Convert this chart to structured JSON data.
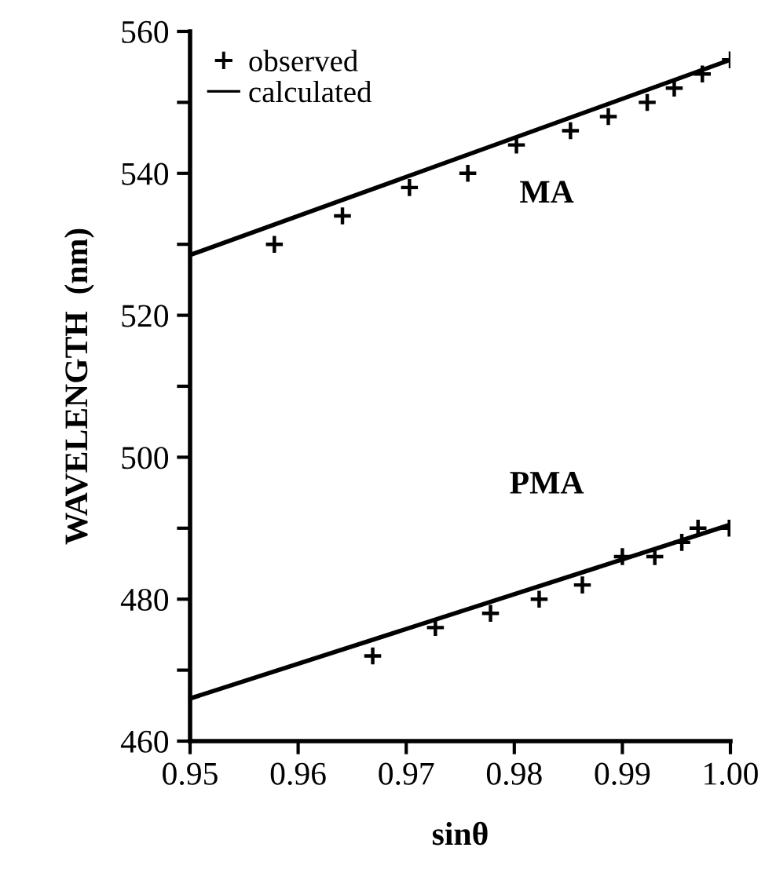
{
  "chart_data": {
    "type": "scatter",
    "xlabel": "sinθ",
    "ylabel": "WAVELENGTH  (nm)",
    "xlim": [
      0.95,
      1.0
    ],
    "xticks": [
      {
        "value": 0.95,
        "label": "0.95"
      },
      {
        "value": 0.96,
        "label": "0.96"
      },
      {
        "value": 0.97,
        "label": "0.97"
      },
      {
        "value": 0.98,
        "label": "0.98"
      },
      {
        "value": 0.99,
        "label": "0.99"
      },
      {
        "value": 1.0,
        "label": "1.00"
      }
    ],
    "ylim": [
      460,
      560
    ],
    "yticks": [
      460,
      {
        "value": 470,
        "label": null
      },
      480,
      {
        "value": 490,
        "label": null
      },
      500,
      {
        "value": 510,
        "label": null
      },
      520,
      {
        "value": 530,
        "label": null
      },
      540,
      {
        "value": 550,
        "label": null
      },
      560
    ],
    "legend": "top left",
    "grid": false,
    "series": [
      {
        "name": "observed",
        "marker": "cross",
        "color": "#000000",
        "x": [
          0.9578,
          0.9641,
          0.9703,
          0.9757,
          0.9802,
          0.9852,
          0.9887,
          0.9923,
          0.9948,
          0.9974,
          1.0
        ],
        "values": [
          530,
          534,
          538,
          540,
          544,
          546,
          548,
          550,
          552,
          554,
          556
        ]
      },
      {
        "marker": "cross",
        "color": "#000000",
        "x": [
          0.9669,
          0.9727,
          0.9778,
          0.9823,
          0.9863,
          0.99,
          0.993,
          0.9955,
          0.997,
          0.9999
        ],
        "values": [
          472,
          476,
          478,
          480,
          482,
          486,
          486,
          488,
          490,
          490
        ]
      },
      {
        "name": "calculated",
        "type": "line",
        "color": "#000000",
        "line_style": "solid",
        "x": [
          0.95,
          1.0
        ],
        "values": [
          528.5,
          556
        ]
      },
      {
        "type": "line",
        "color": "#000000",
        "line_style": "solid",
        "x": [
          0.95,
          1.0
        ],
        "values": [
          466,
          490.5
        ]
      }
    ],
    "annotations": [
      "MA",
      "PMA"
    ]
  }
}
